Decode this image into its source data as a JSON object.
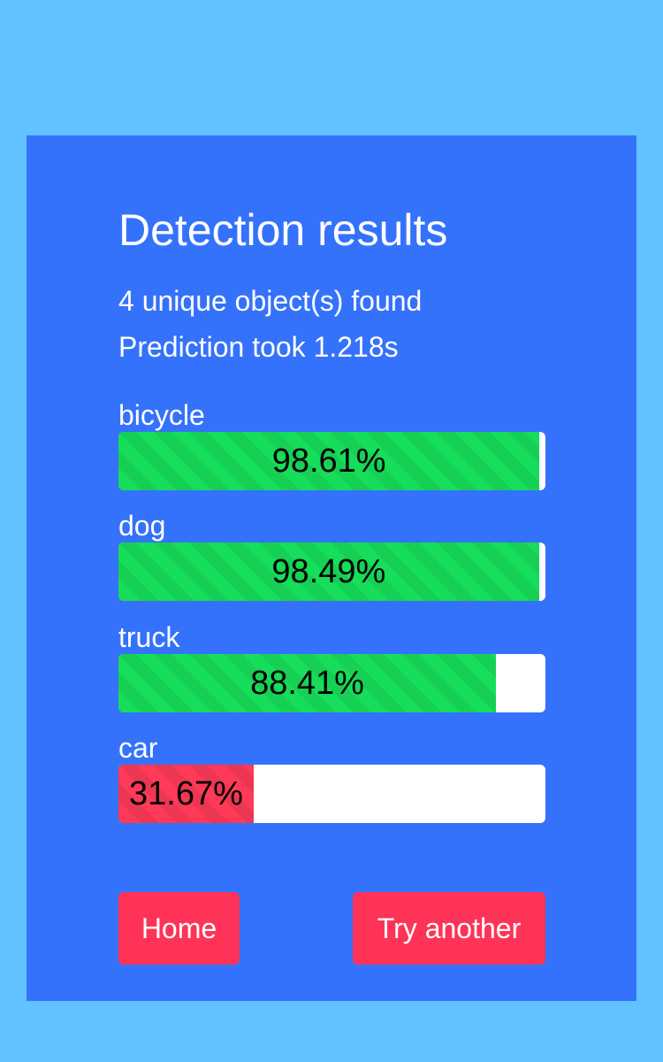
{
  "page": {
    "title": "Detection results",
    "objects_found": "4 unique object(s) found",
    "prediction_time": "Prediction took 1.218s"
  },
  "results": [
    {
      "label": "bicycle",
      "percent_text": "98.61%",
      "fraction": 0.9861,
      "level": "high"
    },
    {
      "label": "dog",
      "percent_text": "98.49%",
      "fraction": 0.9849,
      "level": "high"
    },
    {
      "label": "truck",
      "percent_text": "88.41%",
      "fraction": 0.8841,
      "level": "high"
    },
    {
      "label": "car",
      "percent_text": "31.67%",
      "fraction": 0.3167,
      "level": "low"
    }
  ],
  "buttons": {
    "home": "Home",
    "try_another": "Try another"
  },
  "colors": {
    "page_background": "#62c1ff",
    "card_background": "#3572fb",
    "bar_high": "#16dd5a",
    "bar_low": "#ff3a58",
    "button": "#ff3358"
  }
}
